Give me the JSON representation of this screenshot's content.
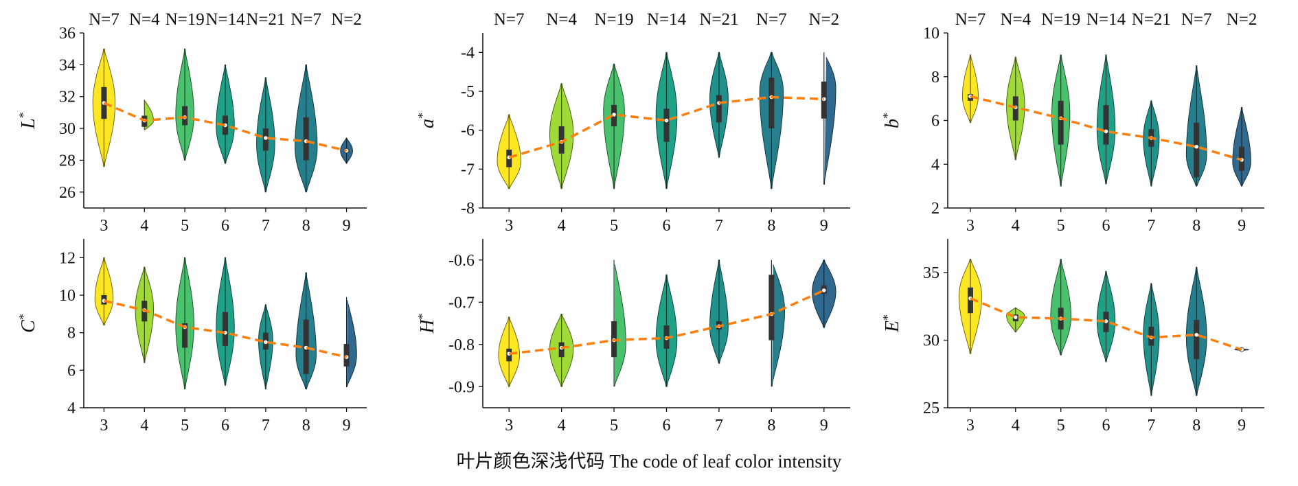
{
  "figure": {
    "xlabel": "叶片颜色深浅代码 The code of leaf color intensity",
    "n_labels": [
      "N=7",
      "N=4",
      "N=19",
      "N=14",
      "N=21",
      "N=7",
      "N=2"
    ],
    "categories": [
      "3",
      "4",
      "5",
      "6",
      "7",
      "8",
      "9"
    ]
  },
  "chart_data": [
    {
      "type": "violin",
      "ylabel": "L*",
      "ylim": [
        25,
        36
      ],
      "yticks": [
        26,
        28,
        30,
        32,
        34,
        36
      ],
      "tick_decimals": 0,
      "colors": [
        "#fde725",
        "#a0da39",
        "#4ac16d",
        "#1fa187",
        "#21918c",
        "#277f8e",
        "#31688e"
      ],
      "categories": [
        "3",
        "4",
        "5",
        "6",
        "7",
        "8",
        "9"
      ],
      "medians": [
        31.6,
        30.5,
        30.7,
        30.2,
        29.4,
        29.2,
        28.6
      ],
      "q1": [
        30.6,
        30.1,
        30.2,
        29.6,
        28.6,
        28.0,
        28.5
      ],
      "q3": [
        32.6,
        30.8,
        31.4,
        30.8,
        30.0,
        30.7,
        28.7
      ],
      "min": [
        27.6,
        29.9,
        28.0,
        27.8,
        26.0,
        26.0,
        27.8
      ],
      "max": [
        35.0,
        31.8,
        35.0,
        34.0,
        33.2,
        34.0,
        29.4
      ],
      "mode": [
        31.6,
        30.5,
        30.8,
        30.1,
        29.0,
        28.8,
        28.6
      ],
      "maxwidth": [
        0.55,
        0.45,
        0.45,
        0.45,
        0.45,
        0.55,
        0.3
      ],
      "trend": [
        31.6,
        30.5,
        30.7,
        30.2,
        29.4,
        29.2,
        28.6
      ]
    },
    {
      "type": "violin",
      "ylabel": "a*",
      "ylim": [
        -8,
        -3.5
      ],
      "yticks": [
        -8,
        -7,
        -6,
        -5,
        -4
      ],
      "tick_decimals": 0,
      "colors": [
        "#fde725",
        "#a0da39",
        "#4ac16d",
        "#1fa187",
        "#21918c",
        "#277f8e",
        "#31688e"
      ],
      "categories": [
        "3",
        "4",
        "5",
        "6",
        "7",
        "8",
        "9"
      ],
      "medians": [
        -6.7,
        -6.3,
        -5.6,
        -5.75,
        -5.3,
        -5.15,
        -5.2
      ],
      "q1": [
        -6.95,
        -6.6,
        -5.9,
        -6.3,
        -5.8,
        -5.95,
        -5.7
      ],
      "q3": [
        -6.5,
        -5.9,
        -5.35,
        -5.45,
        -5.1,
        -4.65,
        -4.75
      ],
      "min": [
        -7.5,
        -7.5,
        -7.5,
        -7.5,
        -6.7,
        -7.5,
        -7.4
      ],
      "max": [
        -5.6,
        -4.8,
        -4.3,
        -4.0,
        -4.0,
        -4.0,
        -4.0
      ],
      "mode": [
        -6.8,
        -6.1,
        -5.5,
        -5.6,
        -5.2,
        -5.0,
        -4.9
      ],
      "maxwidth": [
        0.45,
        0.45,
        0.4,
        0.4,
        0.35,
        0.45,
        0.45
      ],
      "trend": [
        -6.7,
        -6.3,
        -5.6,
        -5.75,
        -5.3,
        -5.15,
        -5.2
      ]
    },
    {
      "type": "violin",
      "ylabel": "b*",
      "ylim": [
        2,
        10
      ],
      "yticks": [
        2,
        4,
        6,
        8,
        10
      ],
      "tick_decimals": 0,
      "colors": [
        "#fde725",
        "#a0da39",
        "#4ac16d",
        "#1fa187",
        "#21918c",
        "#277f8e",
        "#31688e"
      ],
      "categories": [
        "3",
        "4",
        "5",
        "6",
        "7",
        "8",
        "9"
      ],
      "medians": [
        7.1,
        6.6,
        6.1,
        5.5,
        5.2,
        4.8,
        4.2
      ],
      "q1": [
        6.9,
        6.0,
        4.9,
        4.9,
        4.8,
        3.4,
        3.7
      ],
      "q3": [
        7.2,
        7.1,
        6.9,
        6.7,
        5.6,
        5.9,
        4.8
      ],
      "min": [
        5.9,
        4.2,
        3.0,
        3.1,
        3.0,
        3.0,
        3.0
      ],
      "max": [
        9.0,
        8.9,
        9.0,
        9.0,
        6.9,
        8.5,
        6.6
      ],
      "mode": [
        7.1,
        6.7,
        6.3,
        5.6,
        5.2,
        4.4,
        4.1
      ],
      "maxwidth": [
        0.35,
        0.4,
        0.4,
        0.4,
        0.35,
        0.45,
        0.4
      ],
      "trend": [
        7.1,
        6.6,
        6.1,
        5.5,
        5.2,
        4.8,
        4.2
      ]
    },
    {
      "type": "violin",
      "ylabel": "C*",
      "ylim": [
        4,
        13
      ],
      "yticks": [
        4,
        6,
        8,
        10,
        12
      ],
      "tick_decimals": 0,
      "colors": [
        "#fde725",
        "#a0da39",
        "#4ac16d",
        "#1fa187",
        "#21918c",
        "#277f8e",
        "#31688e"
      ],
      "categories": [
        "3",
        "4",
        "5",
        "6",
        "7",
        "8",
        "9"
      ],
      "medians": [
        9.7,
        9.2,
        8.3,
        8.0,
        7.5,
        7.2,
        6.7
      ],
      "q1": [
        9.5,
        8.6,
        7.2,
        7.3,
        7.1,
        5.8,
        6.2
      ],
      "q3": [
        10.0,
        9.7,
        8.5,
        9.1,
        8.0,
        8.7,
        7.4
      ],
      "min": [
        8.4,
        6.4,
        5.0,
        5.2,
        5.0,
        5.0,
        5.1
      ],
      "max": [
        12.0,
        11.5,
        12.0,
        12.0,
        9.5,
        11.2,
        9.9
      ],
      "mode": [
        9.8,
        9.3,
        8.4,
        8.2,
        7.6,
        6.8,
        6.8
      ],
      "maxwidth": [
        0.45,
        0.45,
        0.45,
        0.45,
        0.35,
        0.5,
        0.5
      ],
      "trend": [
        9.7,
        9.2,
        8.3,
        8.0,
        7.5,
        7.2,
        6.7
      ]
    },
    {
      "type": "violin",
      "ylabel": "H*",
      "ylim": [
        -0.95,
        -0.55
      ],
      "yticks": [
        -0.9,
        -0.8,
        -0.7,
        -0.6
      ],
      "tick_decimals": 1,
      "colors": [
        "#fde725",
        "#a0da39",
        "#4ac16d",
        "#1fa187",
        "#21918c",
        "#277f8e",
        "#31688e"
      ],
      "categories": [
        "3",
        "4",
        "5",
        "6",
        "7",
        "8",
        "9"
      ],
      "medians": [
        -0.822,
        -0.808,
        -0.79,
        -0.785,
        -0.757,
        -0.728,
        -0.672
      ],
      "q1": [
        -0.84,
        -0.83,
        -0.83,
        -0.81,
        -0.765,
        -0.79,
        -0.68
      ],
      "q3": [
        -0.81,
        -0.795,
        -0.745,
        -0.755,
        -0.745,
        -0.635,
        -0.66
      ],
      "min": [
        -0.9,
        -0.9,
        -0.9,
        -0.9,
        -0.845,
        -0.9,
        -0.76
      ],
      "max": [
        -0.735,
        -0.728,
        -0.6,
        -0.635,
        -0.6,
        -0.6,
        -0.6
      ],
      "mode": [
        -0.825,
        -0.81,
        -0.8,
        -0.79,
        -0.76,
        -0.72,
        -0.675
      ],
      "maxwidth": [
        0.4,
        0.45,
        0.45,
        0.4,
        0.35,
        0.5,
        0.45
      ],
      "trend": [
        -0.822,
        -0.808,
        -0.79,
        -0.785,
        -0.757,
        -0.728,
        -0.672
      ]
    },
    {
      "type": "violin",
      "ylabel": "E*",
      "ylim": [
        25,
        37.5
      ],
      "yticks": [
        25,
        30,
        35
      ],
      "tick_decimals": 0,
      "colors": [
        "#fde725",
        "#a0da39",
        "#4ac16d",
        "#1fa187",
        "#21918c",
        "#277f8e",
        "#31688e"
      ],
      "categories": [
        "3",
        "4",
        "5",
        "6",
        "7",
        "8",
        "9"
      ],
      "medians": [
        33.1,
        31.7,
        31.6,
        31.4,
        30.2,
        30.4,
        29.3
      ],
      "q1": [
        32.0,
        31.4,
        30.8,
        30.6,
        29.6,
        28.6,
        29.25
      ],
      "q3": [
        33.9,
        31.9,
        32.4,
        32.1,
        31.0,
        31.5,
        29.35
      ],
      "min": [
        29.0,
        30.6,
        28.9,
        28.4,
        25.9,
        25.9,
        29.25
      ],
      "max": [
        36.0,
        32.4,
        36.0,
        35.1,
        34.2,
        35.4,
        29.35
      ],
      "mode": [
        33.3,
        31.8,
        31.7,
        31.4,
        30.4,
        30.2,
        29.3
      ],
      "maxwidth": [
        0.5,
        0.4,
        0.45,
        0.4,
        0.35,
        0.45,
        0.3
      ],
      "trend": [
        33.1,
        31.7,
        31.6,
        31.4,
        30.2,
        30.4,
        29.3
      ]
    }
  ]
}
